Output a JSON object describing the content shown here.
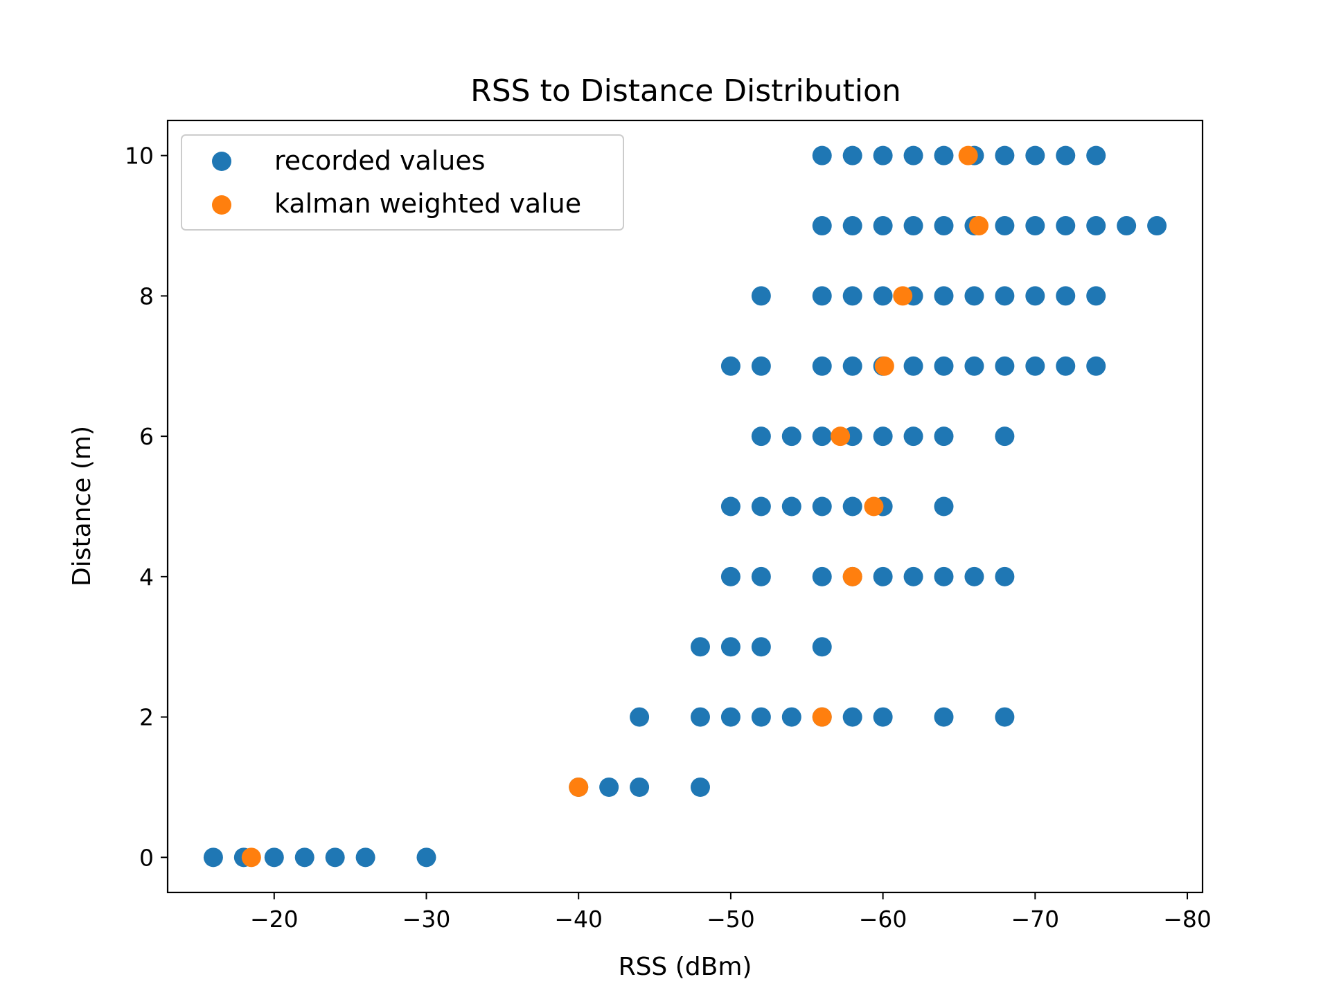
{
  "colors": {
    "recorded": "#1f77b4",
    "kalman": "#ff7f0e"
  },
  "chart_data": {
    "type": "scatter",
    "title": "RSS to Distance Distribution",
    "xlabel": "RSS (dBm)",
    "ylabel": "Distance (m)",
    "xlim": [
      -13,
      -81
    ],
    "ylim": [
      -0.5,
      10.5
    ],
    "x_ticks": [
      -20,
      -30,
      -40,
      -50,
      -60,
      -70,
      -80
    ],
    "x_tick_labels": [
      "−20",
      "−30",
      "−40",
      "−50",
      "−60",
      "−70",
      "−80"
    ],
    "y_ticks": [
      0,
      2,
      4,
      6,
      8,
      10
    ],
    "y_tick_labels": [
      "0",
      "2",
      "4",
      "6",
      "8",
      "10"
    ],
    "legend_placement": "upper-left",
    "grid": false,
    "series": [
      {
        "name": "recorded values",
        "points": [
          [
            -16,
            0
          ],
          [
            -18,
            0
          ],
          [
            -20,
            0
          ],
          [
            -22,
            0
          ],
          [
            -24,
            0
          ],
          [
            -26,
            0
          ],
          [
            -30,
            0
          ],
          [
            -40,
            1
          ],
          [
            -42,
            1
          ],
          [
            -44,
            1
          ],
          [
            -48,
            1
          ],
          [
            -44,
            2
          ],
          [
            -48,
            2
          ],
          [
            -50,
            2
          ],
          [
            -52,
            2
          ],
          [
            -54,
            2
          ],
          [
            -56,
            2
          ],
          [
            -58,
            2
          ],
          [
            -60,
            2
          ],
          [
            -64,
            2
          ],
          [
            -68,
            2
          ],
          [
            -48,
            3
          ],
          [
            -50,
            3
          ],
          [
            -52,
            3
          ],
          [
            -56,
            3
          ],
          [
            -50,
            4
          ],
          [
            -52,
            4
          ],
          [
            -56,
            4
          ],
          [
            -58,
            4
          ],
          [
            -60,
            4
          ],
          [
            -62,
            4
          ],
          [
            -64,
            4
          ],
          [
            -66,
            4
          ],
          [
            -68,
            4
          ],
          [
            -50,
            5
          ],
          [
            -52,
            5
          ],
          [
            -54,
            5
          ],
          [
            -56,
            5
          ],
          [
            -58,
            5
          ],
          [
            -60,
            5
          ],
          [
            -64,
            5
          ],
          [
            -52,
            6
          ],
          [
            -54,
            6
          ],
          [
            -56,
            6
          ],
          [
            -58,
            6
          ],
          [
            -60,
            6
          ],
          [
            -62,
            6
          ],
          [
            -64,
            6
          ],
          [
            -68,
            6
          ],
          [
            -50,
            7
          ],
          [
            -52,
            7
          ],
          [
            -56,
            7
          ],
          [
            -58,
            7
          ],
          [
            -60,
            7
          ],
          [
            -62,
            7
          ],
          [
            -64,
            7
          ],
          [
            -66,
            7
          ],
          [
            -68,
            7
          ],
          [
            -70,
            7
          ],
          [
            -72,
            7
          ],
          [
            -74,
            7
          ],
          [
            -52,
            8
          ],
          [
            -56,
            8
          ],
          [
            -58,
            8
          ],
          [
            -60,
            8
          ],
          [
            -62,
            8
          ],
          [
            -64,
            8
          ],
          [
            -66,
            8
          ],
          [
            -68,
            8
          ],
          [
            -70,
            8
          ],
          [
            -72,
            8
          ],
          [
            -74,
            8
          ],
          [
            -56,
            9
          ],
          [
            -58,
            9
          ],
          [
            -60,
            9
          ],
          [
            -62,
            9
          ],
          [
            -64,
            9
          ],
          [
            -66,
            9
          ],
          [
            -68,
            9
          ],
          [
            -70,
            9
          ],
          [
            -72,
            9
          ],
          [
            -74,
            9
          ],
          [
            -76,
            9
          ],
          [
            -78,
            9
          ],
          [
            -56,
            10
          ],
          [
            -58,
            10
          ],
          [
            -60,
            10
          ],
          [
            -62,
            10
          ],
          [
            -64,
            10
          ],
          [
            -66,
            10
          ],
          [
            -68,
            10
          ],
          [
            -70,
            10
          ],
          [
            -72,
            10
          ],
          [
            -74,
            10
          ]
        ]
      },
      {
        "name": "kalman weighted value",
        "points": [
          [
            -18.5,
            0
          ],
          [
            -40,
            1
          ],
          [
            -56,
            2
          ],
          [
            -58,
            4
          ],
          [
            -59.4,
            5
          ],
          [
            -57.2,
            6
          ],
          [
            -60.1,
            7
          ],
          [
            -61.3,
            8
          ],
          [
            -66.3,
            9
          ],
          [
            -65.6,
            10
          ]
        ]
      }
    ]
  }
}
